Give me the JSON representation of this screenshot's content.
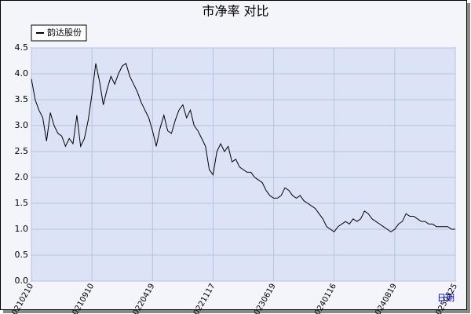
{
  "chart_data": {
    "type": "line",
    "title": "市净率  对比",
    "x_label": "日期",
    "categories": [
      "20210210",
      null,
      null,
      null,
      null,
      null,
      null,
      null,
      null,
      null,
      null,
      null,
      null,
      null,
      null,
      null,
      "20210910",
      null,
      null,
      null,
      null,
      null,
      null,
      null,
      null,
      null,
      null,
      null,
      null,
      null,
      null,
      null,
      "20220419",
      null,
      null,
      null,
      null,
      null,
      null,
      null,
      null,
      null,
      null,
      null,
      null,
      null,
      null,
      null,
      "20221117",
      null,
      null,
      null,
      null,
      null,
      null,
      null,
      null,
      null,
      null,
      null,
      null,
      null,
      null,
      null,
      "20230619",
      null,
      null,
      null,
      null,
      null,
      null,
      null,
      null,
      null,
      null,
      null,
      null,
      null,
      null,
      null,
      "20240116",
      null,
      null,
      null,
      null,
      null,
      null,
      null,
      null,
      null,
      null,
      null,
      null,
      null,
      null,
      null,
      "20240819",
      null,
      null,
      null,
      null,
      null,
      null,
      null,
      null,
      null,
      null,
      null,
      null,
      null,
      null,
      null,
      "20250325"
    ],
    "series": [
      {
        "name": "韵达股份",
        "color": "#000000",
        "values": [
          3.9,
          3.5,
          3.3,
          3.15,
          2.7,
          3.25,
          3.0,
          2.85,
          2.8,
          2.6,
          2.75,
          2.65,
          3.2,
          2.6,
          2.75,
          3.1,
          3.6,
          4.2,
          3.85,
          3.4,
          3.7,
          3.95,
          3.8,
          4.0,
          4.15,
          4.2,
          3.95,
          3.8,
          3.65,
          3.45,
          3.3,
          3.15,
          2.9,
          2.6,
          2.95,
          3.2,
          2.9,
          2.85,
          3.1,
          3.3,
          3.4,
          3.15,
          3.3,
          3.0,
          2.9,
          2.75,
          2.6,
          2.15,
          2.05,
          2.5,
          2.65,
          2.5,
          2.6,
          2.3,
          2.35,
          2.2,
          2.15,
          2.1,
          2.1,
          2.0,
          1.95,
          1.9,
          1.75,
          1.65,
          1.6,
          1.6,
          1.65,
          1.8,
          1.75,
          1.65,
          1.6,
          1.65,
          1.55,
          1.5,
          1.45,
          1.4,
          1.3,
          1.2,
          1.05,
          1.0,
          0.95,
          1.05,
          1.1,
          1.15,
          1.1,
          1.2,
          1.15,
          1.2,
          1.35,
          1.3,
          1.2,
          1.15,
          1.1,
          1.05,
          1.0,
          0.95,
          1.0,
          1.1,
          1.15,
          1.3,
          1.25,
          1.25,
          1.2,
          1.15,
          1.15,
          1.1,
          1.1,
          1.05,
          1.05,
          1.05,
          1.05,
          1.0,
          1.0
        ]
      }
    ],
    "ylim": [
      0,
      4.5
    ],
    "yticks": [
      {
        "value": 0,
        "label": "0.0"
      },
      0.5,
      {
        "value": 1,
        "label": "1.0"
      },
      1.5,
      {
        "value": 2,
        "label": "2.0"
      },
      2.5,
      {
        "value": 3,
        "label": "3.0"
      },
      3.5,
      {
        "value": 4,
        "label": "4.0"
      },
      4.5
    ],
    "grid": true,
    "legend": "upper left"
  }
}
